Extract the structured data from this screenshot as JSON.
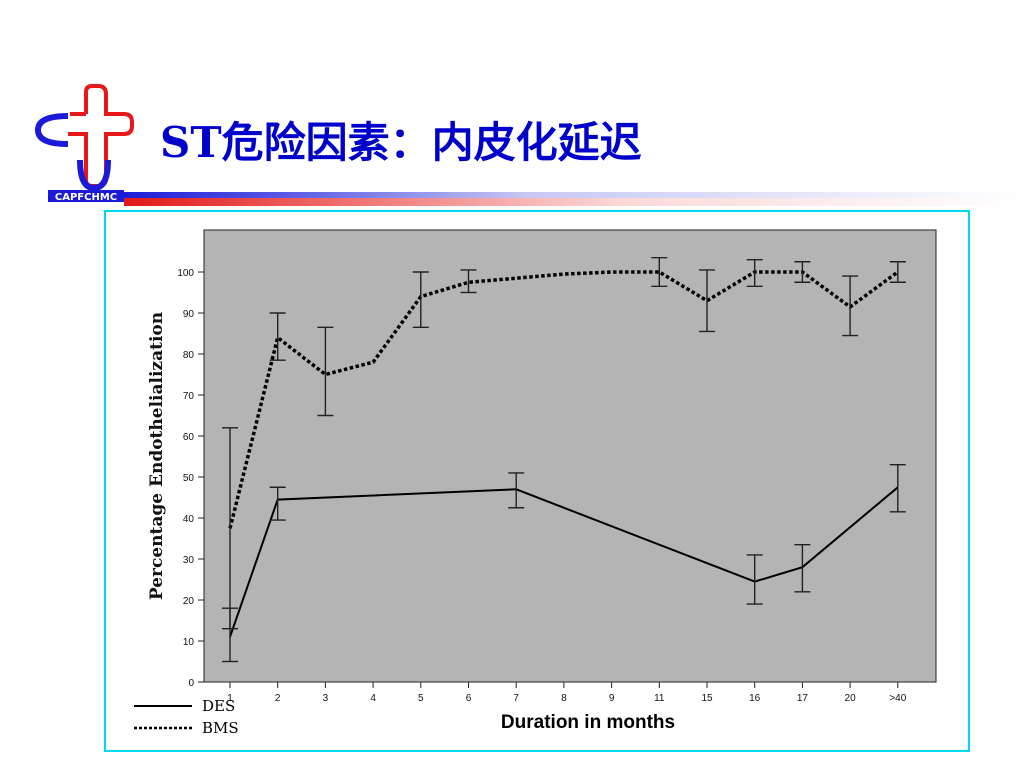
{
  "logo": {
    "text": "CAPFCHMC",
    "cross_color": "#e81818",
    "arc_color": "#1a1ad8"
  },
  "title": "ST危险因素：内皮化延迟",
  "colors": {
    "title": "#0000cc",
    "frame": "#00d8f0",
    "plot_bg": "#b4b4b4"
  },
  "chart_data": {
    "type": "line",
    "title": "",
    "xlabel": "Duration in months",
    "ylabel": "Percentage Endothelialization",
    "categories": [
      "1",
      "2",
      "3",
      "4",
      "5",
      "6",
      "7",
      "8",
      "9",
      "11",
      "15",
      "16",
      "17",
      "20",
      ">40"
    ],
    "ylim": [
      0,
      110
    ],
    "yticks": [
      0,
      10,
      20,
      30,
      40,
      50,
      60,
      70,
      80,
      90,
      100
    ],
    "grid": false,
    "legend": "bottom-left",
    "series": [
      {
        "name": "DES",
        "style": "solid",
        "points": [
          {
            "x": "1",
            "y": 11,
            "low": 5,
            "high": 18
          },
          {
            "x": "2",
            "y": 44.5,
            "low": 39.5,
            "high": 47.5
          },
          {
            "x": "7",
            "y": 47,
            "low": 42.5,
            "high": 51
          },
          {
            "x": "16",
            "y": 24.5,
            "low": 19,
            "high": 31
          },
          {
            "x": "17",
            "y": 28,
            "low": 22,
            "high": 33.5
          },
          {
            "x": ">40",
            "y": 47.5,
            "low": 41.5,
            "high": 53
          }
        ]
      },
      {
        "name": "BMS",
        "style": "dotted",
        "points": [
          {
            "x": "1",
            "y": 37.5,
            "low": 13,
            "high": 62
          },
          {
            "x": "2",
            "y": 84,
            "low": 78.5,
            "high": 90
          },
          {
            "x": "3",
            "y": 75,
            "low": 65,
            "high": 86.5
          },
          {
            "x": "4",
            "y": 78
          },
          {
            "x": "5",
            "y": 94,
            "low": 86.5,
            "high": 100
          },
          {
            "x": "6",
            "y": 97.5,
            "low": 95,
            "high": 100.5
          },
          {
            "x": "7",
            "y": 98.5
          },
          {
            "x": "8",
            "y": 99.5
          },
          {
            "x": "9",
            "y": 100
          },
          {
            "x": "11",
            "y": 100,
            "low": 96.5,
            "high": 103.5
          },
          {
            "x": "15",
            "y": 93,
            "low": 85.5,
            "high": 100.5
          },
          {
            "x": "16",
            "y": 100,
            "low": 96.5,
            "high": 103
          },
          {
            "x": "17",
            "y": 100,
            "low": 97.5,
            "high": 102.5
          },
          {
            "x": "20",
            "y": 91.5,
            "low": 84.5,
            "high": 99
          },
          {
            "x": ">40",
            "y": 100,
            "low": 97.5,
            "high": 102.5
          }
        ]
      }
    ]
  }
}
